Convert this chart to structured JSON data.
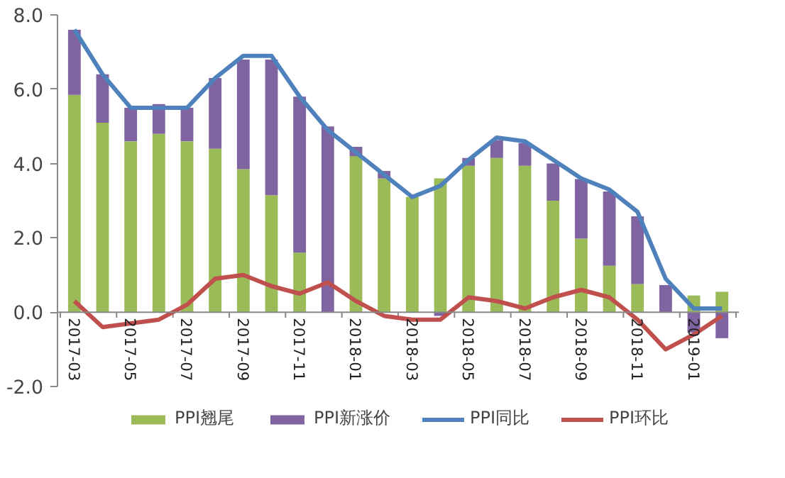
{
  "chart_data": {
    "type": "bar",
    "stacked": true,
    "categories": [
      "2017-03",
      null,
      "2017-05",
      null,
      "2017-07",
      null,
      "2017-09",
      null,
      "2017-11",
      null,
      "2018-01",
      null,
      "2018-03",
      null,
      "2018-05",
      null,
      "2018-07",
      null,
      "2018-09",
      null,
      "2018-11",
      null,
      "2019-01",
      null
    ],
    "series": [
      {
        "name": "PPI翘尾",
        "color": "#9bbb59",
        "values": [
          5.85,
          5.1,
          4.6,
          4.8,
          4.6,
          4.4,
          3.85,
          3.15,
          1.6,
          0,
          4.2,
          3.6,
          3.1,
          3.6,
          3.94,
          4.15,
          3.94,
          3.0,
          1.98,
          1.25,
          0.76,
          0,
          0.45,
          0.55
        ]
      },
      {
        "name": "PPI新涨价",
        "color": "#8064a2",
        "values": [
          1.75,
          1.3,
          0.9,
          0.8,
          0.9,
          1.9,
          2.95,
          3.65,
          4.2,
          5.0,
          0.25,
          0.2,
          0,
          -0.1,
          0.21,
          0.48,
          0.61,
          1.0,
          1.6,
          2.0,
          1.82,
          0.73,
          -0.55,
          -0.7
        ]
      },
      {
        "name": "PPI同比",
        "color": "#4f81bd",
        "type": "line",
        "values": [
          7.6,
          6.4,
          5.5,
          5.5,
          5.5,
          6.3,
          6.9,
          6.9,
          5.8,
          4.9,
          4.3,
          3.7,
          3.1,
          3.4,
          4.1,
          4.7,
          4.6,
          4.1,
          3.6,
          3.3,
          2.7,
          0.9,
          0.1,
          0.1
        ]
      },
      {
        "name": "PPI环比",
        "color": "#c0504d",
        "type": "line",
        "values": [
          0.3,
          -0.4,
          -0.3,
          -0.2,
          0.2,
          0.9,
          1.0,
          0.7,
          0.5,
          0.8,
          0.3,
          -0.1,
          -0.2,
          -0.2,
          0.4,
          0.3,
          0.1,
          0.4,
          0.6,
          0.4,
          -0.2,
          -1.0,
          -0.6,
          -0.1
        ]
      }
    ],
    "ylim": [
      -2,
      8
    ],
    "yticks": [
      {
        "value": -2,
        "label": "-2.0"
      },
      {
        "value": 0,
        "label": "0.0"
      },
      {
        "value": 2,
        "label": "2.0"
      },
      {
        "value": 4,
        "label": "4.0"
      },
      {
        "value": 6,
        "label": "6.0"
      },
      {
        "value": 8,
        "label": "8.0"
      }
    ],
    "grid": false,
    "legend": "bottom"
  }
}
